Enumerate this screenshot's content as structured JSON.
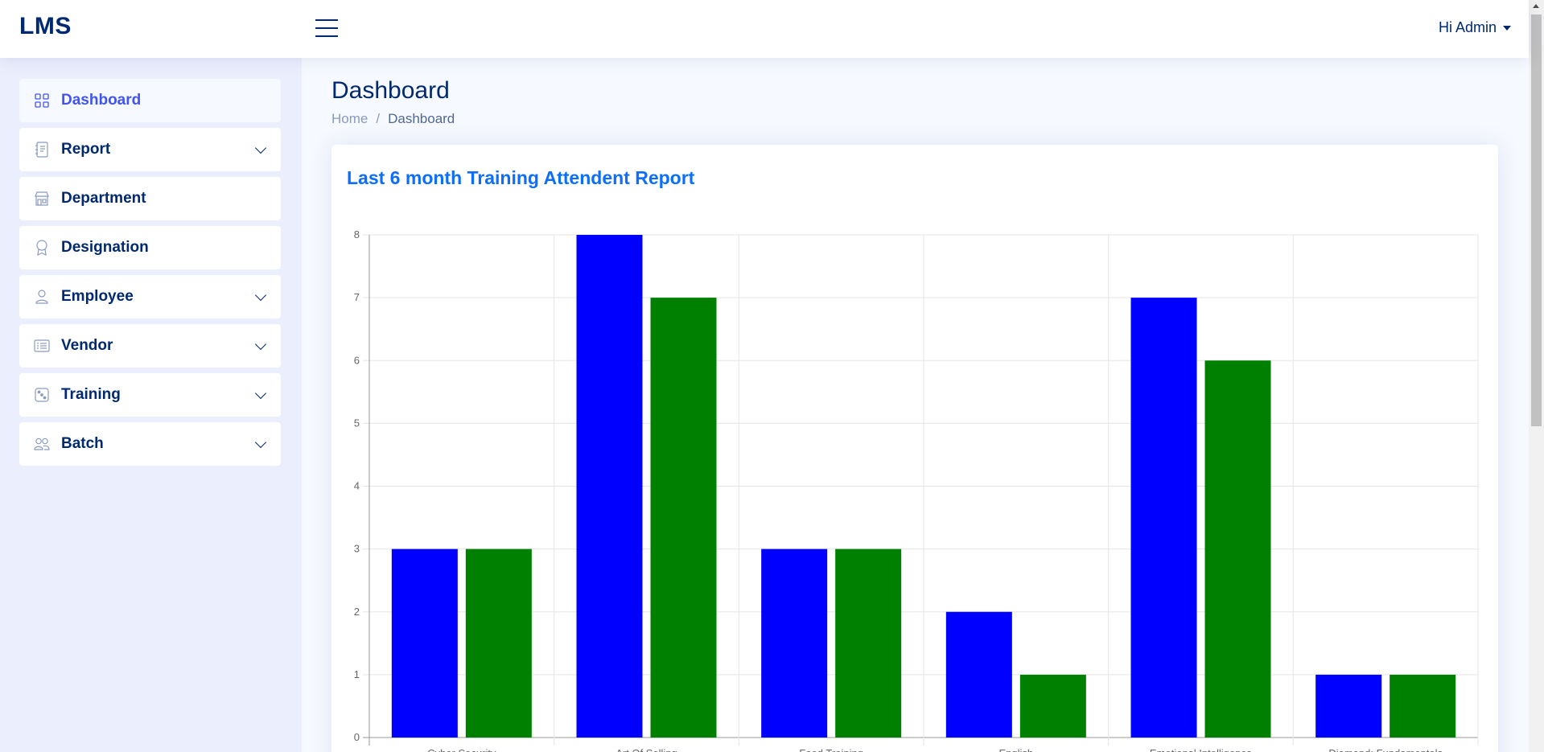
{
  "header": {
    "logo": "LMS",
    "user_label": "Hi Admin"
  },
  "sidebar": {
    "items": [
      {
        "label": "Dashboard",
        "icon": "grid-icon",
        "active": true,
        "expandable": false
      },
      {
        "label": "Report",
        "icon": "journal-icon",
        "active": false,
        "expandable": true
      },
      {
        "label": "Department",
        "icon": "shop-icon",
        "active": false,
        "expandable": false
      },
      {
        "label": "Designation",
        "icon": "award-icon",
        "active": false,
        "expandable": false
      },
      {
        "label": "Employee",
        "icon": "person-icon",
        "active": false,
        "expandable": true
      },
      {
        "label": "Vendor",
        "icon": "list-icon",
        "active": false,
        "expandable": true
      },
      {
        "label": "Training",
        "icon": "dice-icon",
        "active": false,
        "expandable": true
      },
      {
        "label": "Batch",
        "icon": "people-icon",
        "active": false,
        "expandable": true
      }
    ]
  },
  "page": {
    "title": "Dashboard",
    "breadcrumb": {
      "home": "Home",
      "separator": "/",
      "current": "Dashboard"
    }
  },
  "card": {
    "title": "Last 6 month Training Attendent Report"
  },
  "colors": {
    "series1": "#0000ff",
    "series2": "#008000",
    "accent": "#4154f1",
    "title_blue": "#0d6efd",
    "navy": "#012970"
  },
  "chart_data": {
    "type": "bar",
    "categories": [
      "Cyber Security",
      "Art Of Selling",
      "Food Training",
      "English",
      "Emotional Intelligence",
      "Diamond: Fundamentals"
    ],
    "series": [
      {
        "values": [
          3,
          8,
          3,
          2,
          7,
          1
        ]
      },
      {
        "values": [
          3,
          7,
          3,
          1,
          6,
          1
        ]
      }
    ],
    "ylim": [
      0,
      8
    ],
    "yticks": [
      "0",
      "1",
      "2",
      "3",
      "4",
      "5",
      "6",
      "7",
      "8"
    ],
    "grid": true
  }
}
